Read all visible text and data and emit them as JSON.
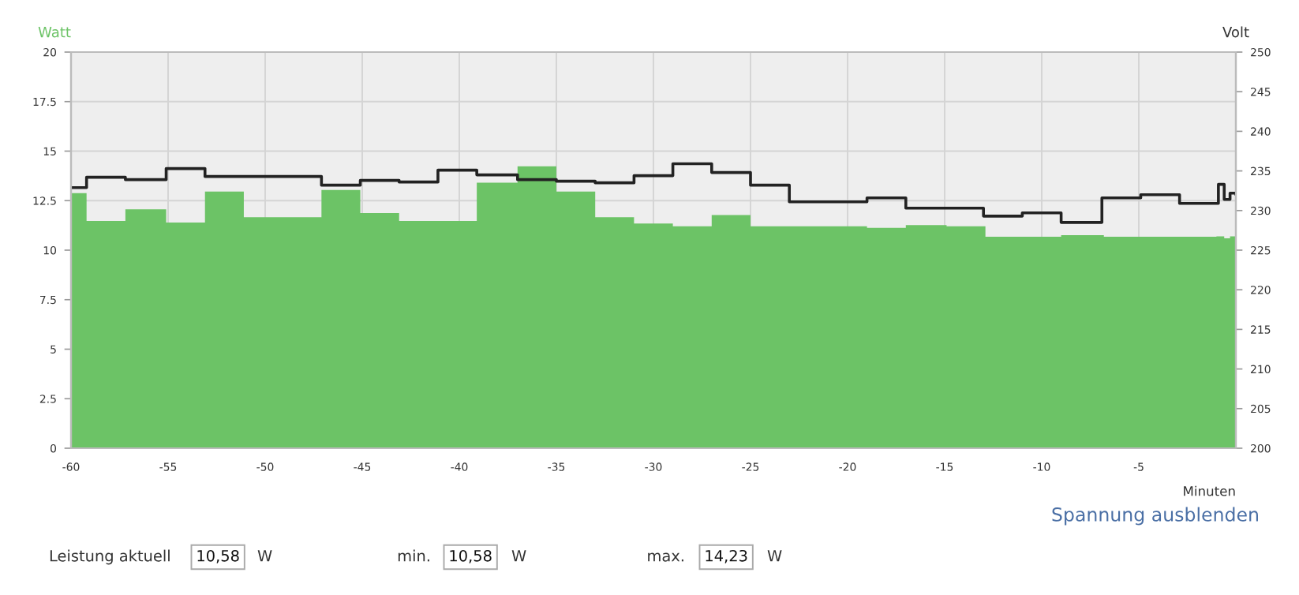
{
  "chart_data": {
    "type": "step",
    "xlabel": "Minuten",
    "ylabel": "Watt",
    "y2label": "Volt",
    "series": [
      {
        "name": null,
        "type": "area",
        "color": "#6cc366",
        "x": [
          -60,
          -59.2,
          -57.2,
          -55.1,
          -53.1,
          -51.1,
          -47.1,
          -45.1,
          -43.1,
          -39.1,
          -37.0,
          -35.0,
          -33.0,
          -31.0,
          -29.0,
          -27.0,
          -25.0,
          -19.0,
          -17.0,
          -14.9,
          -12.9,
          -9.0,
          -6.8,
          -1.0,
          -0.6,
          -0.3,
          0
        ],
        "values": [
          12.88,
          11.47,
          12.06,
          11.39,
          12.96,
          11.66,
          13.04,
          11.87,
          11.47,
          13.41,
          14.23,
          12.96,
          11.66,
          11.34,
          11.21,
          11.77,
          11.21,
          11.13,
          11.26,
          11.21,
          10.68,
          10.76,
          10.68,
          10.7,
          10.6,
          10.7,
          10.58
        ]
      },
      {
        "name": null,
        "axis": "y2",
        "color": "#222222",
        "x": [
          -60,
          -59.2,
          -57.2,
          -55.1,
          -53.1,
          -47.1,
          -45.1,
          -43.1,
          -41.1,
          -39.1,
          -37.0,
          -35.0,
          -33.0,
          -31.0,
          -29.0,
          -27.0,
          -25.0,
          -23.0,
          -19.0,
          -17.0,
          -13.0,
          -11.0,
          -9.0,
          -6.9,
          -4.9,
          -2.9,
          -0.9,
          -0.6,
          -0.3,
          0
        ],
        "values": [
          232.9,
          234.2,
          233.9,
          235.3,
          234.3,
          233.2,
          233.8,
          233.6,
          235.1,
          234.5,
          233.9,
          233.7,
          233.5,
          234.4,
          235.9,
          234.8,
          233.2,
          231.1,
          231.6,
          230.3,
          229.3,
          229.7,
          228.5,
          231.6,
          232.0,
          230.9,
          233.3,
          231.4,
          232.2,
          232.0
        ]
      }
    ],
    "xlim": [
      -60,
      0
    ],
    "xticks": [
      -60,
      -55,
      -50,
      -45,
      -40,
      -35,
      -30,
      -25,
      -20,
      -15,
      -10,
      -5
    ],
    "ylim": [
      0,
      20
    ],
    "yticks": [
      0,
      2.5,
      5,
      7.5,
      10,
      12.5,
      15,
      17.5,
      20
    ],
    "y2lim": [
      200,
      250
    ],
    "y2ticks": [
      200,
      205,
      210,
      215,
      220,
      225,
      230,
      235,
      240,
      245,
      250
    ],
    "grid": true,
    "annotations": [
      "Spannung ausblenden",
      "Leistung aktuell",
      "10,58",
      "W",
      "min.",
      "10,58",
      "W",
      "max.",
      "14,23",
      "W"
    ]
  }
}
